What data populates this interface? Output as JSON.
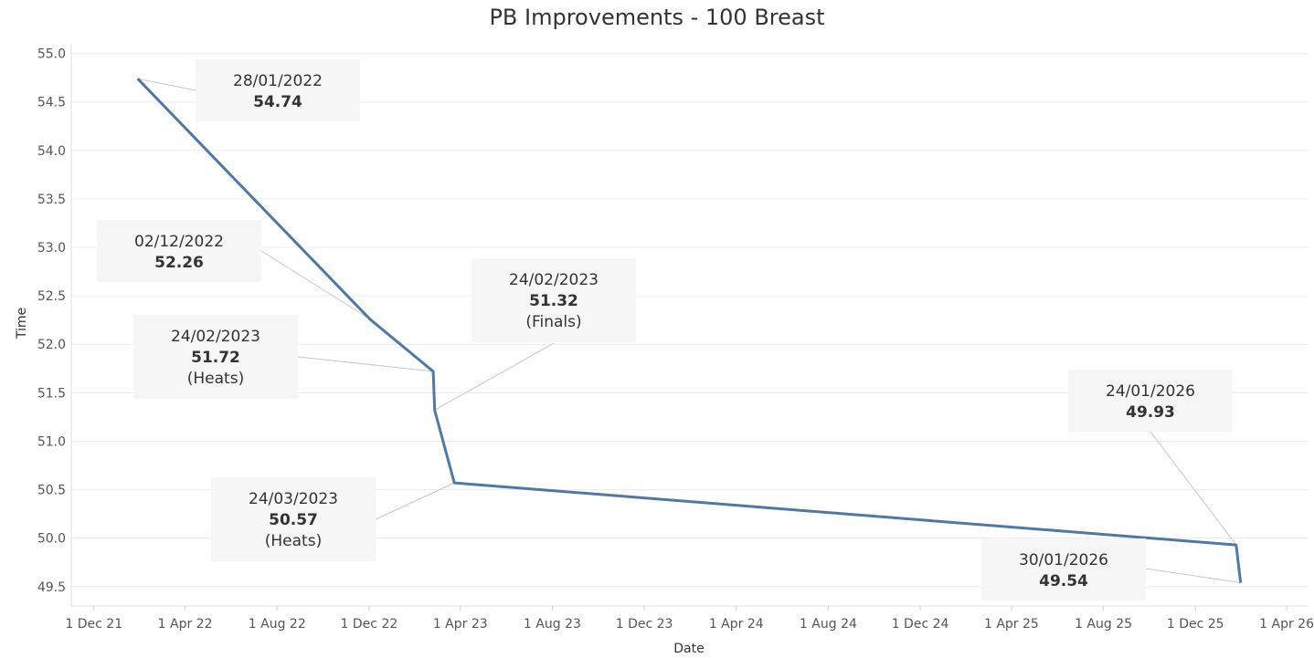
{
  "chart_data": {
    "type": "line",
    "title": "PB Improvements - 100 Breast",
    "xlabel": "Date",
    "ylabel": "Time",
    "ylim": [
      49.3,
      55.1
    ],
    "yticks": [
      "49.5",
      "50.0",
      "50.5",
      "51.0",
      "51.5",
      "52.0",
      "52.5",
      "53.0",
      "53.5",
      "54.0",
      "54.5",
      "55.0"
    ],
    "xlim": [
      "2021-11-01",
      "2026-04-30"
    ],
    "xticks": [
      {
        "date": "2021-12-01",
        "label": "1 Dec 21"
      },
      {
        "date": "2022-04-01",
        "label": "1 Apr 22"
      },
      {
        "date": "2022-08-01",
        "label": "1 Aug 22"
      },
      {
        "date": "2022-12-01",
        "label": "1 Dec 22"
      },
      {
        "date": "2023-04-01",
        "label": "1 Apr 23"
      },
      {
        "date": "2023-08-01",
        "label": "1 Aug 23"
      },
      {
        "date": "2023-12-01",
        "label": "1 Dec 23"
      },
      {
        "date": "2024-04-01",
        "label": "1 Apr 24"
      },
      {
        "date": "2024-08-01",
        "label": "1 Aug 24"
      },
      {
        "date": "2024-12-01",
        "label": "1 Dec 24"
      },
      {
        "date": "2025-04-01",
        "label": "1 Apr 25"
      },
      {
        "date": "2025-08-01",
        "label": "1 Aug 25"
      },
      {
        "date": "2025-12-01",
        "label": "1 Dec 25"
      },
      {
        "date": "2026-04-01",
        "label": "1 Apr 26"
      }
    ],
    "grid": true,
    "series": [
      {
        "color": "#4e79a7",
        "points": [
          {
            "date": "2022-01-28",
            "value": 54.74,
            "label": "28/01/2022",
            "value_label": "54.74",
            "note": ""
          },
          {
            "date": "2022-12-02",
            "value": 52.26,
            "label": "02/12/2022",
            "value_label": "52.26",
            "note": ""
          },
          {
            "date": "2023-02-24",
            "value": 51.72,
            "label": "24/02/2023",
            "value_label": "51.72",
            "note": "(Heats)"
          },
          {
            "date": "2023-02-26",
            "value": 51.32,
            "label": "24/02/2023",
            "value_label": "51.32",
            "note": "(Finals)"
          },
          {
            "date": "2023-03-24",
            "value": 50.57,
            "label": "24/03/2023",
            "value_label": "50.57",
            "note": "(Heats)"
          },
          {
            "date": "2026-01-24",
            "value": 49.93,
            "label": "24/01/2026",
            "value_label": "49.93",
            "note": ""
          },
          {
            "date": "2026-01-30",
            "value": 49.54,
            "label": "30/01/2026",
            "value_label": "49.54",
            "note": ""
          }
        ]
      }
    ]
  }
}
